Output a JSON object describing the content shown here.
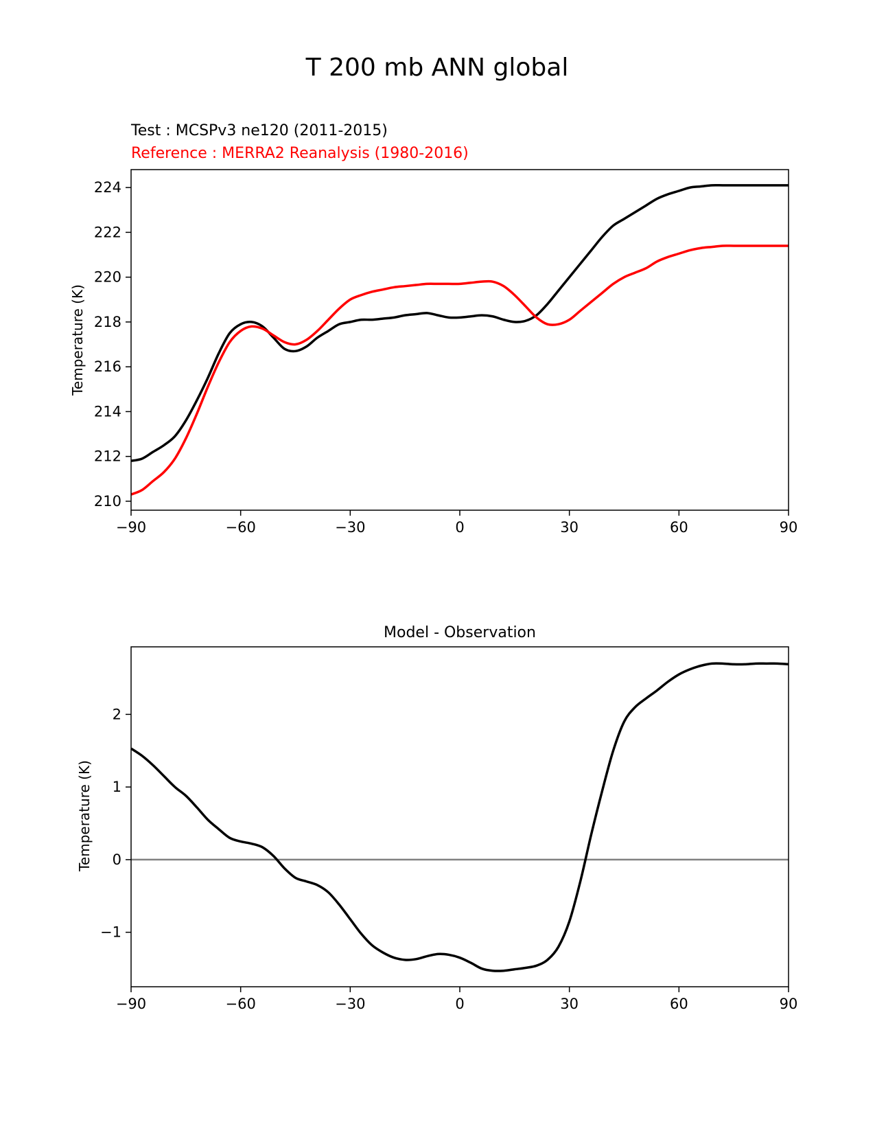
{
  "figure": {
    "title": "T 200 mb ANN global"
  },
  "chart_data": [
    {
      "type": "line",
      "title_lines": [
        {
          "text": "Test : MCSPv3 ne120 (2011-2015)",
          "color": "#000000"
        },
        {
          "text": "Reference : MERRA2 Reanalysis (1980-2016)",
          "color": "#ff0000"
        }
      ],
      "xlabel": "",
      "ylabel": "Temperature (K)",
      "xlim": [
        -90,
        90
      ],
      "ylim": [
        209.6,
        224.8
      ],
      "xticks": [
        -90,
        -60,
        -30,
        0,
        30,
        60,
        90
      ],
      "xtick_labels": [
        "−90",
        "−60",
        "−30",
        "0",
        "30",
        "60",
        "90"
      ],
      "yticks": [
        210,
        212,
        214,
        216,
        218,
        220,
        222,
        224
      ],
      "ytick_labels": [
        "210",
        "212",
        "214",
        "216",
        "218",
        "220",
        "222",
        "224"
      ],
      "grid": false,
      "series": [
        {
          "color": "#000000",
          "x": [
            -90,
            -87,
            -84,
            -81,
            -78,
            -75,
            -72,
            -69,
            -66,
            -63,
            -60,
            -57,
            -54,
            -51,
            -48,
            -45,
            -42,
            -39,
            -36,
            -33,
            -30,
            -27,
            -24,
            -21,
            -18,
            -15,
            -12,
            -9,
            -6,
            -3,
            0,
            3,
            6,
            9,
            12,
            15,
            18,
            21,
            24,
            27,
            30,
            33,
            36,
            39,
            42,
            45,
            48,
            51,
            54,
            57,
            60,
            63,
            66,
            69,
            72,
            75,
            78,
            81,
            84,
            87,
            90
          ],
          "y": [
            211.8,
            211.9,
            212.2,
            212.5,
            212.9,
            213.6,
            214.5,
            215.5,
            216.6,
            217.5,
            217.9,
            218.0,
            217.8,
            217.3,
            216.8,
            216.7,
            216.9,
            217.3,
            217.6,
            217.9,
            218.0,
            218.1,
            218.1,
            218.15,
            218.2,
            218.3,
            218.35,
            218.4,
            218.3,
            218.2,
            218.2,
            218.25,
            218.3,
            218.25,
            218.1,
            218.0,
            218.05,
            218.3,
            218.8,
            219.4,
            220.0,
            220.6,
            221.2,
            221.8,
            222.3,
            222.6,
            222.9,
            223.2,
            223.5,
            223.7,
            223.85,
            224.0,
            224.05,
            224.1,
            224.1,
            224.1,
            224.1,
            224.1,
            224.1,
            224.1,
            224.1
          ]
        },
        {
          "color": "#ff0000",
          "x": [
            -90,
            -87,
            -84,
            -81,
            -78,
            -75,
            -72,
            -69,
            -66,
            -63,
            -60,
            -57,
            -54,
            -51,
            -48,
            -45,
            -42,
            -39,
            -36,
            -33,
            -30,
            -27,
            -24,
            -21,
            -18,
            -15,
            -12,
            -9,
            -6,
            -3,
            0,
            3,
            6,
            9,
            12,
            15,
            18,
            21,
            24,
            27,
            30,
            33,
            36,
            39,
            42,
            45,
            48,
            51,
            54,
            57,
            60,
            63,
            66,
            69,
            72,
            75,
            78,
            81,
            84,
            87,
            90
          ],
          "y": [
            210.3,
            210.5,
            210.9,
            211.3,
            211.9,
            212.8,
            213.9,
            215.1,
            216.2,
            217.1,
            217.6,
            217.8,
            217.7,
            217.4,
            217.1,
            217.0,
            217.2,
            217.6,
            218.1,
            218.6,
            219.0,
            219.2,
            219.35,
            219.45,
            219.55,
            219.6,
            219.65,
            219.7,
            219.7,
            219.7,
            219.7,
            219.75,
            219.8,
            219.8,
            219.6,
            219.2,
            218.7,
            218.2,
            217.9,
            217.9,
            218.1,
            218.5,
            218.9,
            219.3,
            219.7,
            220.0,
            220.2,
            220.4,
            220.7,
            220.9,
            221.05,
            221.2,
            221.3,
            221.35,
            221.4,
            221.4,
            221.4,
            221.4,
            221.4,
            221.4,
            221.4
          ]
        }
      ]
    },
    {
      "type": "line",
      "title": "Model - Observation",
      "xlabel": "",
      "ylabel": "Temperature (K)",
      "xlim": [
        -90,
        90
      ],
      "ylim": [
        -1.75,
        2.93
      ],
      "xticks": [
        -90,
        -60,
        -30,
        0,
        30,
        60,
        90
      ],
      "xtick_labels": [
        "−90",
        "−60",
        "−30",
        "0",
        "30",
        "60",
        "90"
      ],
      "yticks": [
        -1,
        0,
        1,
        2
      ],
      "ytick_labels": [
        "−1",
        "0",
        "1",
        "2"
      ],
      "grid": false,
      "reference_line": {
        "y": 0,
        "color": "#808080"
      },
      "series": [
        {
          "color": "#000000",
          "x": [
            -90,
            -87,
            -84,
            -81,
            -78,
            -75,
            -72,
            -69,
            -66,
            -63,
            -60,
            -57,
            -54,
            -51,
            -48,
            -45,
            -42,
            -39,
            -36,
            -33,
            -30,
            -27,
            -24,
            -21,
            -18,
            -15,
            -12,
            -9,
            -6,
            -3,
            0,
            3,
            6,
            9,
            12,
            15,
            18,
            21,
            24,
            27,
            30,
            33,
            36,
            39,
            42,
            45,
            48,
            51,
            54,
            57,
            60,
            63,
            66,
            69,
            72,
            75,
            78,
            81,
            84,
            87,
            90
          ],
          "y": [
            1.53,
            1.43,
            1.3,
            1.15,
            1.0,
            0.88,
            0.72,
            0.55,
            0.42,
            0.3,
            0.25,
            0.22,
            0.17,
            0.05,
            -0.12,
            -0.25,
            -0.3,
            -0.35,
            -0.45,
            -0.62,
            -0.82,
            -1.02,
            -1.18,
            -1.28,
            -1.35,
            -1.38,
            -1.37,
            -1.33,
            -1.3,
            -1.31,
            -1.35,
            -1.42,
            -1.5,
            -1.53,
            -1.53,
            -1.51,
            -1.49,
            -1.46,
            -1.38,
            -1.2,
            -0.85,
            -0.3,
            0.35,
            0.95,
            1.5,
            1.9,
            2.1,
            2.22,
            2.33,
            2.45,
            2.55,
            2.62,
            2.67,
            2.7,
            2.7,
            2.69,
            2.69,
            2.7,
            2.7,
            2.7,
            2.69
          ]
        }
      ]
    }
  ]
}
